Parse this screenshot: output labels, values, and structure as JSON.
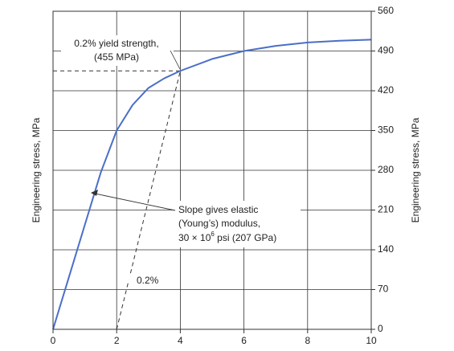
{
  "chart_data": {
    "type": "line",
    "x": [
      0,
      0.5,
      1.0,
      1.5,
      2,
      2.5,
      3,
      3.5,
      4,
      5,
      6,
      7,
      8,
      9,
      10
    ],
    "series": [
      {
        "name": "Engineering stress",
        "color": "#4a6fc7",
        "values": [
          0,
          92,
          184,
          276,
          350,
          395,
          425,
          442,
          455,
          476,
          490,
          499,
          505,
          508,
          510
        ]
      }
    ],
    "xlim": [
      0,
      10
    ],
    "xticks": [
      0,
      2,
      4,
      6,
      8,
      10
    ],
    "ylim": [
      0,
      560
    ],
    "yticks": [
      0,
      70,
      140,
      210,
      280,
      350,
      420,
      490,
      560
    ],
    "grid": true,
    "ylabel": "Engineering stress, MPa",
    "y2label": "Engineering stress, MPa",
    "offset_line": {
      "x": [
        2,
        4
      ],
      "y": [
        0,
        455
      ]
    },
    "yield_strength": 455,
    "annotations": {
      "yield_line1": "0.2% yield strength,",
      "yield_line2": "(455 MPa)",
      "slope_line1": "Slope gives elastic",
      "slope_line2": "(Young’s) modulus,",
      "slope_line3a": "30 × 10",
      "slope_line3sup": "6",
      "slope_line3b": " psi (207 GPa)",
      "offset": "0.2%"
    }
  }
}
